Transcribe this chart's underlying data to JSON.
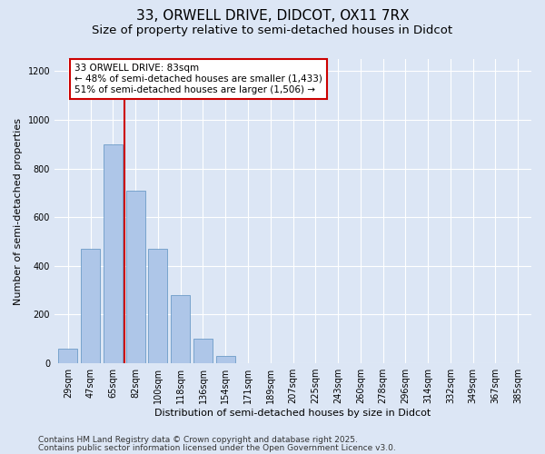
{
  "title_line1": "33, ORWELL DRIVE, DIDCOT, OX11 7RX",
  "title_line2": "Size of property relative to semi-detached houses in Didcot",
  "xlabel": "Distribution of semi-detached houses by size in Didcot",
  "ylabel": "Number of semi-detached properties",
  "bar_labels": [
    "29sqm",
    "47sqm",
    "65sqm",
    "82sqm",
    "100sqm",
    "118sqm",
    "136sqm",
    "154sqm",
    "171sqm",
    "189sqm",
    "207sqm",
    "225sqm",
    "243sqm",
    "260sqm",
    "278sqm",
    "296sqm",
    "314sqm",
    "332sqm",
    "349sqm",
    "367sqm",
    "385sqm"
  ],
  "bar_values": [
    60,
    470,
    900,
    710,
    470,
    280,
    100,
    30,
    0,
    0,
    0,
    0,
    0,
    0,
    0,
    0,
    0,
    0,
    0,
    0,
    0
  ],
  "bar_color": "#aec6e8",
  "bar_edge_color": "#5a8fc0",
  "vline_x": 2.5,
  "vline_color": "#cc0000",
  "annotation_text": "33 ORWELL DRIVE: 83sqm\n← 48% of semi-detached houses are smaller (1,433)\n51% of semi-detached houses are larger (1,506) →",
  "annotation_box_color": "#ffffff",
  "annotation_box_edge": "#cc0000",
  "ylim": [
    0,
    1250
  ],
  "yticks": [
    0,
    200,
    400,
    600,
    800,
    1000,
    1200
  ],
  "background_color": "#dce6f5",
  "plot_bg_color": "#dce6f5",
  "footer_line1": "Contains HM Land Registry data © Crown copyright and database right 2025.",
  "footer_line2": "Contains public sector information licensed under the Open Government Licence v3.0.",
  "title_fontsize": 11,
  "subtitle_fontsize": 9.5,
  "axis_label_fontsize": 8,
  "tick_fontsize": 7,
  "annotation_fontsize": 7.5,
  "footer_fontsize": 6.5
}
